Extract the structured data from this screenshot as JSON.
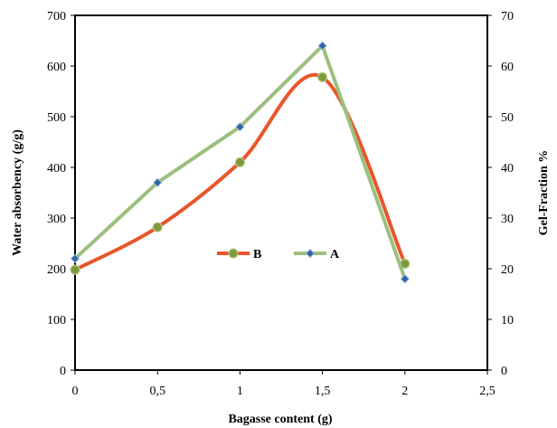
{
  "chart_data": {
    "type": "line",
    "xlabel": "Bagasse content (g)",
    "ylabel": "Water absorbency (g/g)",
    "y2label": "Gel-Fraction %",
    "xlim": [
      0,
      2.5
    ],
    "ylim": [
      0,
      700
    ],
    "y2lim": [
      0,
      70
    ],
    "x_ticks": [
      "0",
      "0,5",
      "1",
      "1,5",
      "2",
      "2,5"
    ],
    "y_ticks": [
      "0",
      "100",
      "200",
      "300",
      "400",
      "500",
      "600",
      "700"
    ],
    "y2_ticks": [
      "0",
      "10",
      "20",
      "30",
      "40",
      "50",
      "60",
      "70"
    ],
    "grid": false,
    "legend_position": "center",
    "series": [
      {
        "name": "B",
        "axis": "left",
        "smooth": true,
        "color": "#e8562a",
        "marker_color": "#7d9a3c",
        "x": [
          0,
          0.5,
          1,
          1.5,
          2
        ],
        "values": [
          198,
          282,
          410,
          578,
          210
        ]
      },
      {
        "name": "A",
        "axis": "right",
        "smooth": false,
        "color": "#9cbf7e",
        "marker_color": "#2f64a8",
        "x": [
          0,
          0.5,
          1,
          1.5,
          2
        ],
        "values": [
          22,
          37,
          48,
          64,
          18
        ]
      }
    ]
  }
}
